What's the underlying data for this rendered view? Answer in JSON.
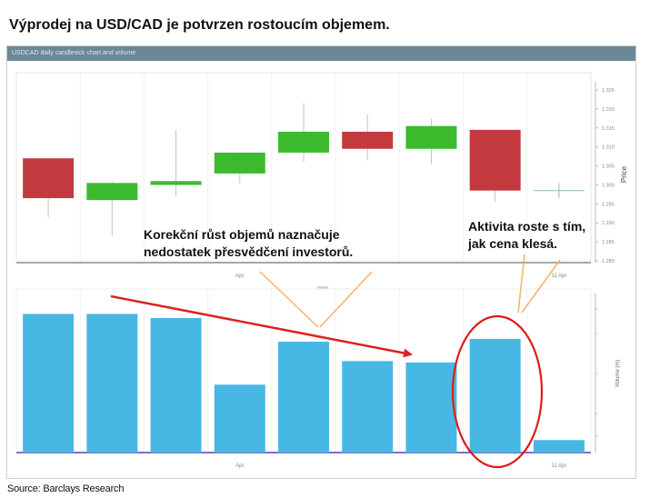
{
  "headline": "Výprodej na USD/CAD je potvrzen rostoucím objemem.",
  "chart_header": "USDCAD daily candlesick chart and volume",
  "source": "Source: Barclays Research",
  "annotations": {
    "note1": "Korekční růst objemů naznačuje\nnedostatek přesvědčení investorů.",
    "note2": "Aktivita roste s tím,\njak cena klesá."
  },
  "colors": {
    "bull": "#3cba2e",
    "bear": "#c33a3e",
    "volume": "#47b8e3",
    "arrow": "#e02020",
    "callout": "#f0b46c"
  },
  "chart_data": [
    {
      "type": "candlestick",
      "ylabel": "Price",
      "ylim": [
        1.28,
        1.325
      ],
      "y_ticks": [
        "1.325",
        "1.320",
        "1.315",
        "1.310",
        "1.305",
        "1.300",
        "1.295",
        "1.290",
        "1.285",
        "1.280"
      ],
      "x_ticks": [
        "Apr",
        "11 Apr"
      ],
      "candles": [
        {
          "open": 1.307,
          "close": 1.2965,
          "high": 1.307,
          "low": 1.2915,
          "dir": "down"
        },
        {
          "open": 1.296,
          "close": 1.3005,
          "high": 1.301,
          "low": 1.2865,
          "dir": "up"
        },
        {
          "open": 1.3,
          "close": 1.301,
          "high": 1.3145,
          "low": 1.297,
          "dir": "up"
        },
        {
          "open": 1.303,
          "close": 1.3085,
          "high": 1.3085,
          "low": 1.3005,
          "dir": "up"
        },
        {
          "open": 1.3085,
          "close": 1.314,
          "high": 1.3215,
          "low": 1.306,
          "dir": "up"
        },
        {
          "open": 1.314,
          "close": 1.3095,
          "high": 1.3185,
          "low": 1.3065,
          "dir": "down"
        },
        {
          "open": 1.3095,
          "close": 1.3155,
          "high": 1.3175,
          "low": 1.3055,
          "dir": "up"
        },
        {
          "open": 1.3145,
          "close": 1.2985,
          "high": 1.3145,
          "low": 1.2955,
          "dir": "down"
        },
        {
          "open": 1.2985,
          "close": 1.2985,
          "high": 1.3005,
          "low": 1.2965,
          "dir": "flat"
        }
      ]
    },
    {
      "type": "bar",
      "ylabel": "Volume (m)",
      "x_ticks": [
        "Apr",
        "11 Apr"
      ],
      "values": [
        100,
        100,
        97,
        49,
        80,
        66,
        65,
        82,
        9
      ],
      "ylim": [
        0,
        118
      ]
    }
  ]
}
